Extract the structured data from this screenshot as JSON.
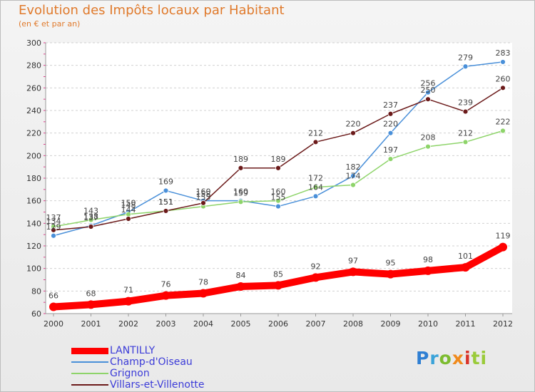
{
  "chart_data": {
    "type": "line",
    "title": "Evolution des Impôts locaux par Habitant",
    "subtitle": "(en € et par an)",
    "x": [
      "2000",
      "2001",
      "2002",
      "2003",
      "2004",
      "2005",
      "2006",
      "2007",
      "2008",
      "2009",
      "2010",
      "2011",
      "2012"
    ],
    "ylim": [
      60,
      300
    ],
    "yticks": [
      60,
      80,
      100,
      120,
      140,
      160,
      180,
      200,
      220,
      240,
      260,
      280,
      300
    ],
    "grid": true,
    "legend_position": "bottom-left",
    "series": [
      {
        "name": "LANTILLY",
        "color": "#ff0000",
        "values": [
          66,
          68,
          71,
          76,
          78,
          84,
          85,
          92,
          97,
          95,
          98,
          101,
          119
        ]
      },
      {
        "name": "Champ-d'Oiseau",
        "color": "#4a90d9",
        "values": [
          129,
          138,
          150,
          169,
          160,
          160,
          155,
          164,
          182,
          220,
          256,
          279,
          283
        ]
      },
      {
        "name": "Grignon",
        "color": "#8ed46a",
        "values": [
          137,
          143,
          148,
          151,
          155,
          159,
          160,
          172,
          174,
          197,
          208,
          212,
          222
        ]
      },
      {
        "name": "Villars-et-Villenotte",
        "color": "#6b1a1a",
        "values": [
          134,
          137,
          144,
          151,
          158,
          189,
          189,
          212,
          220,
          237,
          250,
          239,
          260
        ]
      }
    ]
  },
  "logo": {
    "letters": [
      "P",
      "r",
      "o",
      "x",
      "i",
      "ti"
    ]
  }
}
